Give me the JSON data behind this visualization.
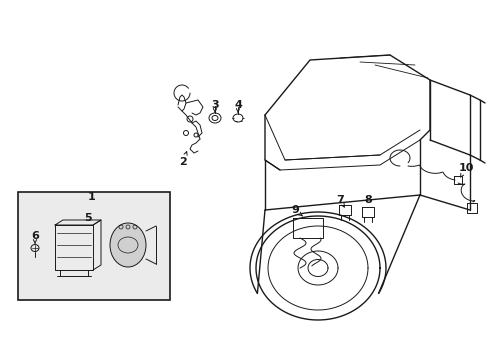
{
  "bg_color": "#ffffff",
  "line_color": "#1a1a1a",
  "box_fill": "#ebebeb",
  "fig_width": 4.89,
  "fig_height": 3.6,
  "dpi": 100
}
